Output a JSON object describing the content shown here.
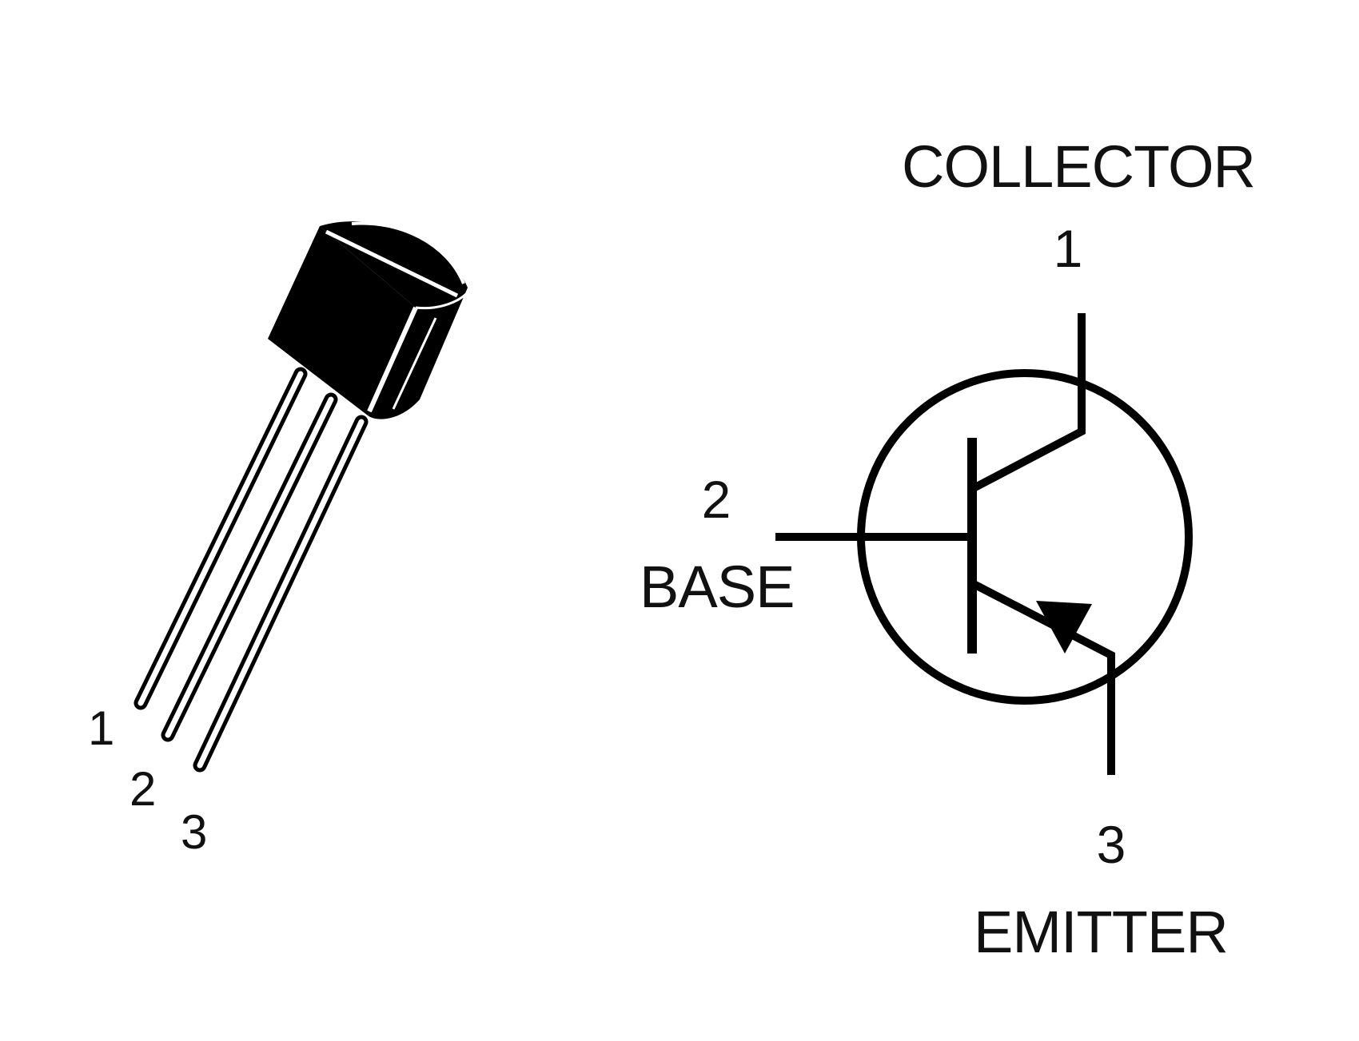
{
  "package": {
    "pins": [
      {
        "number": "1"
      },
      {
        "number": "2"
      },
      {
        "number": "3"
      }
    ]
  },
  "symbol": {
    "collector": {
      "name": "COLLECTOR",
      "pin": "1"
    },
    "base": {
      "name": "BASE",
      "pin": "2"
    },
    "emitter": {
      "name": "EMITTER",
      "pin": "3"
    }
  },
  "colors": {
    "ink": "#000000",
    "background": "#ffffff"
  }
}
